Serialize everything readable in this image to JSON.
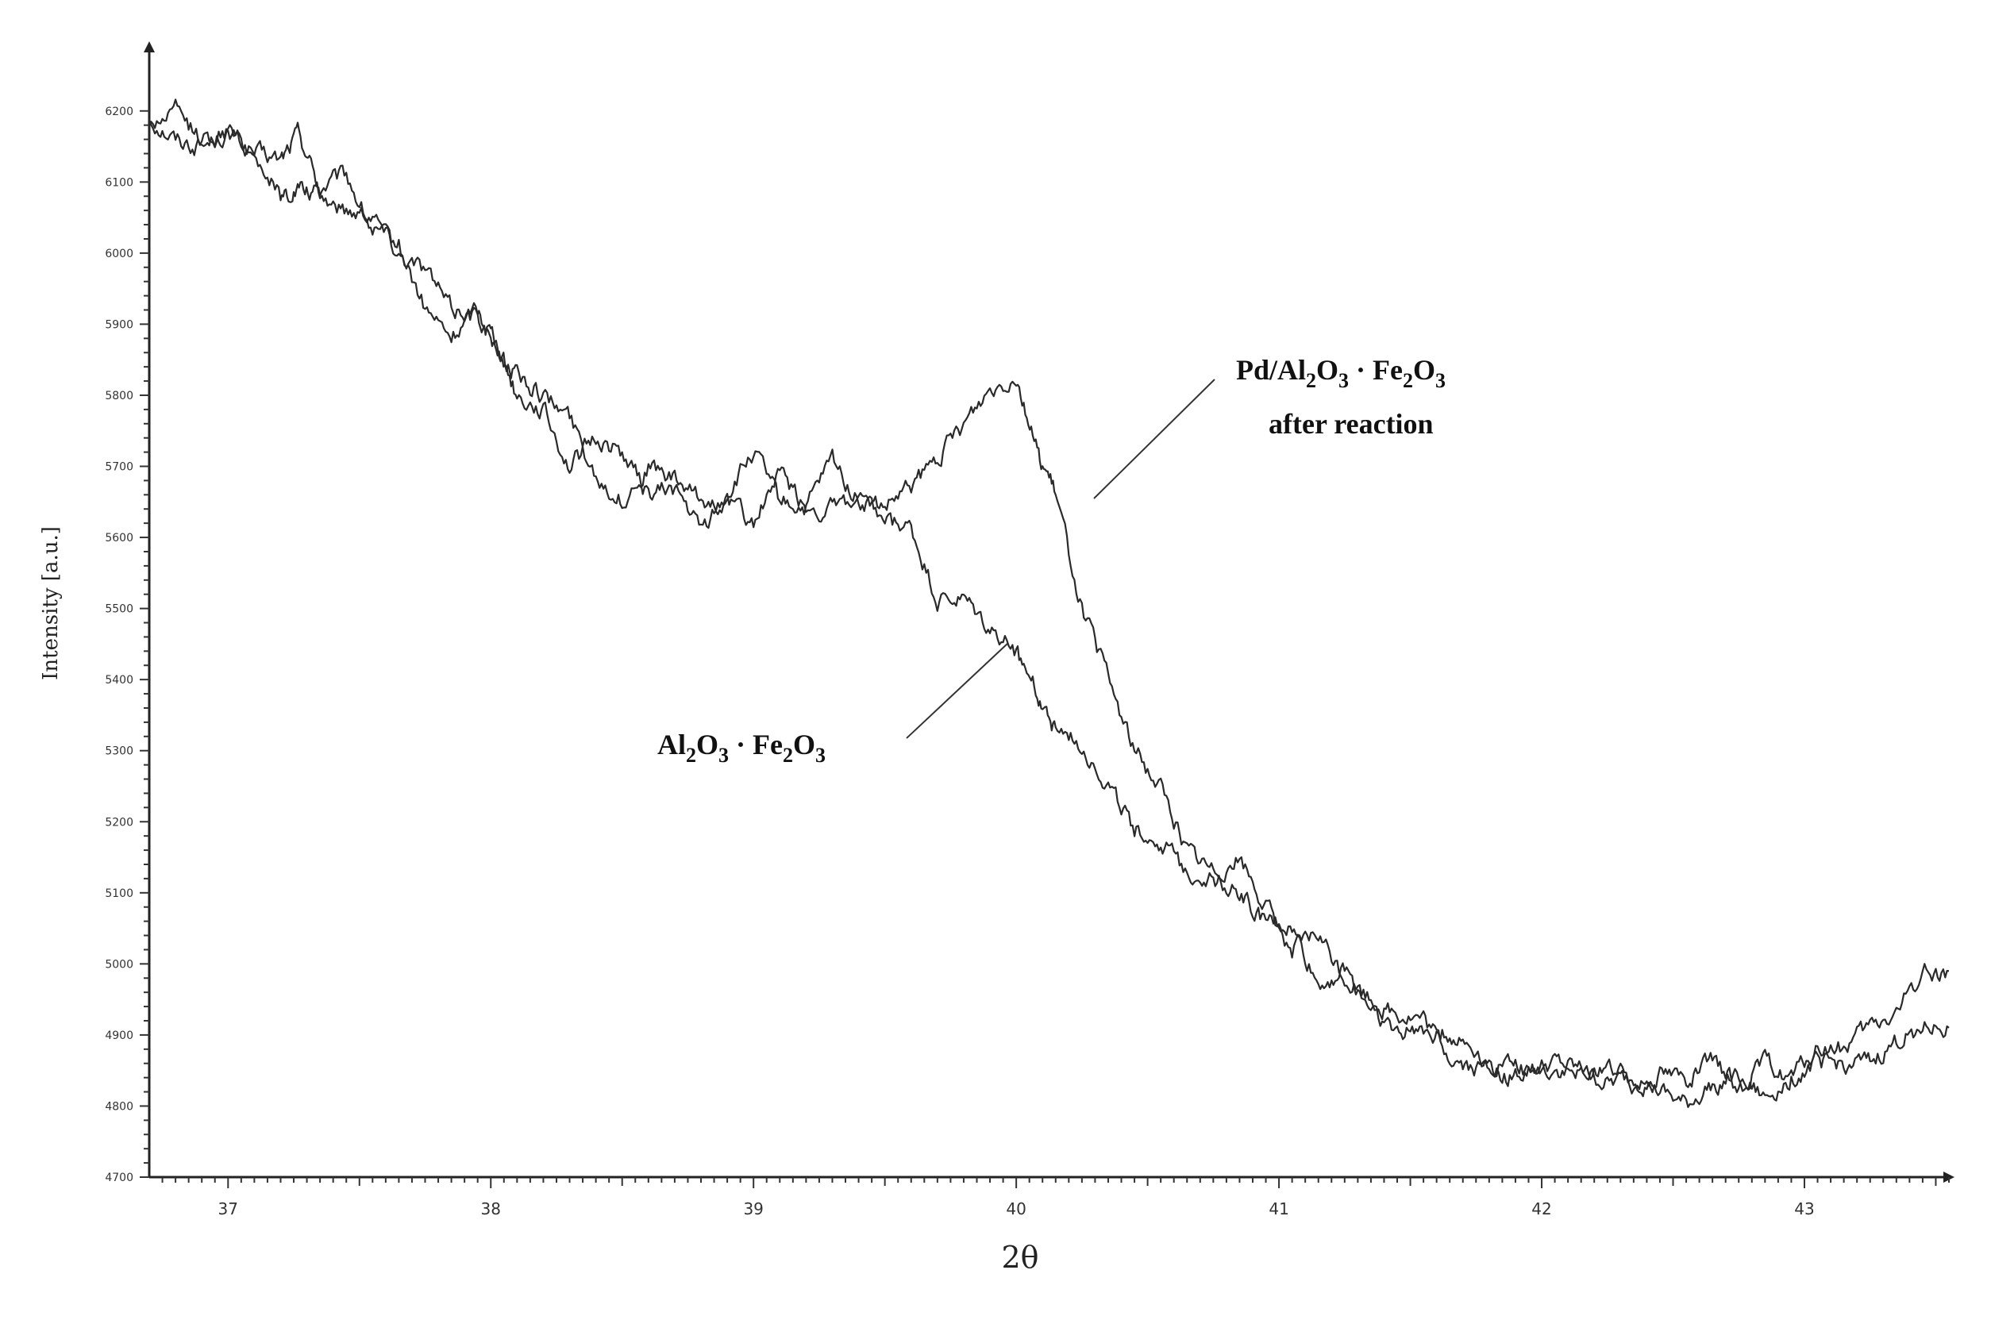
{
  "chart_data": {
    "type": "line",
    "title": "",
    "xlabel": "2θ",
    "ylabel": "Intensity [a.u.]",
    "xlim": [
      36.7,
      43.55
    ],
    "ylim": [
      4700,
      6250
    ],
    "x_ticks": [
      37,
      38,
      39,
      40,
      41,
      42,
      43
    ],
    "y_ticks": [
      4700,
      4800,
      4900,
      5000,
      5100,
      5200,
      5300,
      5400,
      5500,
      5600,
      5700,
      5800,
      5900,
      6000,
      6100,
      6200
    ],
    "grid": false,
    "legend": "none",
    "series": [
      {
        "name": "Pd/Al2O3 · Fe2O3 after reaction",
        "x": [
          36.7,
          36.8,
          36.9,
          37.0,
          37.1,
          37.2,
          37.27,
          37.35,
          37.45,
          37.55,
          37.65,
          37.75,
          37.85,
          37.95,
          38.02,
          38.1,
          38.2,
          38.3,
          38.4,
          38.5,
          38.6,
          38.7,
          38.8,
          38.9,
          39.0,
          39.1,
          39.2,
          39.3,
          39.4,
          39.5,
          39.6,
          39.7,
          39.8,
          39.9,
          40.0,
          40.08,
          40.15,
          40.25,
          40.35,
          40.45,
          40.55,
          40.65,
          40.75,
          40.85,
          40.95,
          41.05,
          41.15,
          41.25,
          41.35,
          41.45,
          41.55,
          41.65,
          41.75,
          41.85,
          41.95,
          42.05,
          42.15,
          42.25,
          42.35,
          42.45,
          42.55,
          42.65,
          42.75,
          42.85,
          42.95,
          43.05,
          43.15,
          43.25,
          43.35,
          43.45,
          43.55
        ],
        "values": [
          6190,
          6160,
          6150,
          6170,
          6140,
          6130,
          6170,
          6090,
          6110,
          6030,
          6010,
          5920,
          5880,
          5920,
          5880,
          5800,
          5780,
          5700,
          5740,
          5720,
          5660,
          5670,
          5610,
          5660,
          5720,
          5650,
          5640,
          5710,
          5650,
          5640,
          5670,
          5710,
          5760,
          5810,
          5830,
          5720,
          5660,
          5500,
          5400,
          5300,
          5250,
          5160,
          5130,
          5150,
          5080,
          5020,
          5040,
          4980,
          4950,
          4930,
          4920,
          4870,
          4850,
          4860,
          4850,
          4850,
          4840,
          4860,
          4830,
          4850,
          4840,
          4860,
          4830,
          4860,
          4840,
          4880,
          4880,
          4910,
          4930,
          4990,
          4990
        ]
      },
      {
        "name": "Al2O3 · Fe2O3",
        "x": [
          36.7,
          36.8,
          36.9,
          37.0,
          37.1,
          37.2,
          37.27,
          37.35,
          37.45,
          37.55,
          37.65,
          37.75,
          37.85,
          37.95,
          38.02,
          38.1,
          38.2,
          38.3,
          38.4,
          38.5,
          38.6,
          38.7,
          38.8,
          38.9,
          39.0,
          39.1,
          39.2,
          39.3,
          39.4,
          39.5,
          39.6,
          39.7,
          39.8,
          39.9,
          40.0,
          40.08,
          40.15,
          40.25,
          40.35,
          40.45,
          40.55,
          40.65,
          40.75,
          40.85,
          40.95,
          41.05,
          41.15,
          41.25,
          41.35,
          41.45,
          41.55,
          41.65,
          41.75,
          41.85,
          41.95,
          42.05,
          42.15,
          42.25,
          42.35,
          42.45,
          42.55,
          42.65,
          42.75,
          42.85,
          42.95,
          43.05,
          43.15,
          43.25,
          43.35,
          43.45,
          43.55
        ],
        "values": [
          6180,
          6200,
          6160,
          6170,
          6140,
          6080,
          6090,
          6080,
          6060,
          6060,
          6000,
          5980,
          5920,
          5920,
          5860,
          5830,
          5800,
          5770,
          5690,
          5650,
          5700,
          5680,
          5650,
          5650,
          5620,
          5690,
          5640,
          5640,
          5650,
          5620,
          5610,
          5510,
          5510,
          5470,
          5440,
          5380,
          5330,
          5310,
          5250,
          5190,
          5170,
          5130,
          5120,
          5100,
          5060,
          5050,
          4970,
          4990,
          4940,
          4900,
          4910,
          4900,
          4880,
          4840,
          4850,
          4860,
          4850,
          4830,
          4840,
          4820,
          4800,
          4830,
          4840,
          4810,
          4840,
          4860,
          4860,
          4860,
          4890,
          4910,
          4910
        ]
      }
    ],
    "annotations": [
      {
        "text_main": "Pd/Al",
        "sub1": "2",
        "mid1": "O",
        "sub2": "3",
        "mid2": " · Fe",
        "sub3": "2",
        "mid3": "O",
        "sub4": "3",
        "line2": "after reaction"
      },
      {
        "text_main": "Al",
        "sub1": "2",
        "mid1": "O",
        "sub2": "3",
        "mid2": " · Fe",
        "sub3": "2",
        "mid3": "O",
        "sub4": "3"
      }
    ]
  }
}
